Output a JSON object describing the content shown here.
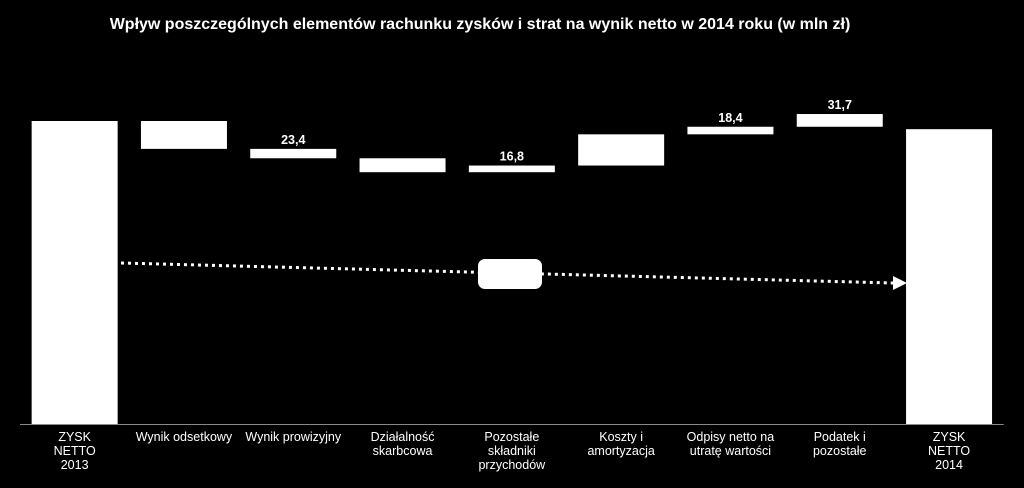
{
  "chart_data": {
    "type": "bar",
    "title": "Wpływ poszczególnych elementów rachunku zysków i strat na wynik netto w 2014 roku (w mln zł)",
    "subtype": "waterfall",
    "categories": [
      [
        "ZYSK",
        "NETTO",
        "2013"
      ],
      [
        "Wynik odsetkowy"
      ],
      [
        "Wynik prowizyjny"
      ],
      [
        "Działalność",
        "skarbcowa"
      ],
      [
        "Pozostałe",
        "składniki",
        "przychodów"
      ],
      [
        "Koszty i",
        "amortyzacja"
      ],
      [
        "Odpisy netto na",
        "utratę wartości"
      ],
      [
        "Podatek i",
        "pozostałe"
      ],
      [
        "ZYSK",
        "NETTO",
        "2014"
      ]
    ],
    "bars": [
      {
        "low": 0,
        "high": 100,
        "label": ""
      },
      {
        "low": 90.8,
        "high": 100,
        "label": ""
      },
      {
        "low": 87.7,
        "high": 90.8,
        "label": "23,4"
      },
      {
        "low": 83.1,
        "high": 87.7,
        "label": ""
      },
      {
        "low": 83.1,
        "high": 85.3,
        "label": "16,8"
      },
      {
        "low": 85.3,
        "high": 95.6,
        "label": ""
      },
      {
        "low": 95.6,
        "high": 98.1,
        "label": "18,4"
      },
      {
        "low": 98.1,
        "high": 102.3,
        "label": "31,7"
      },
      {
        "low": 0,
        "high": 97.3,
        "label": ""
      }
    ],
    "colors": {
      "background": "#000000",
      "bar": "#ffffff",
      "text": "#ffffff",
      "arrow": "#ffffff"
    },
    "grid": false,
    "legend": "none"
  }
}
